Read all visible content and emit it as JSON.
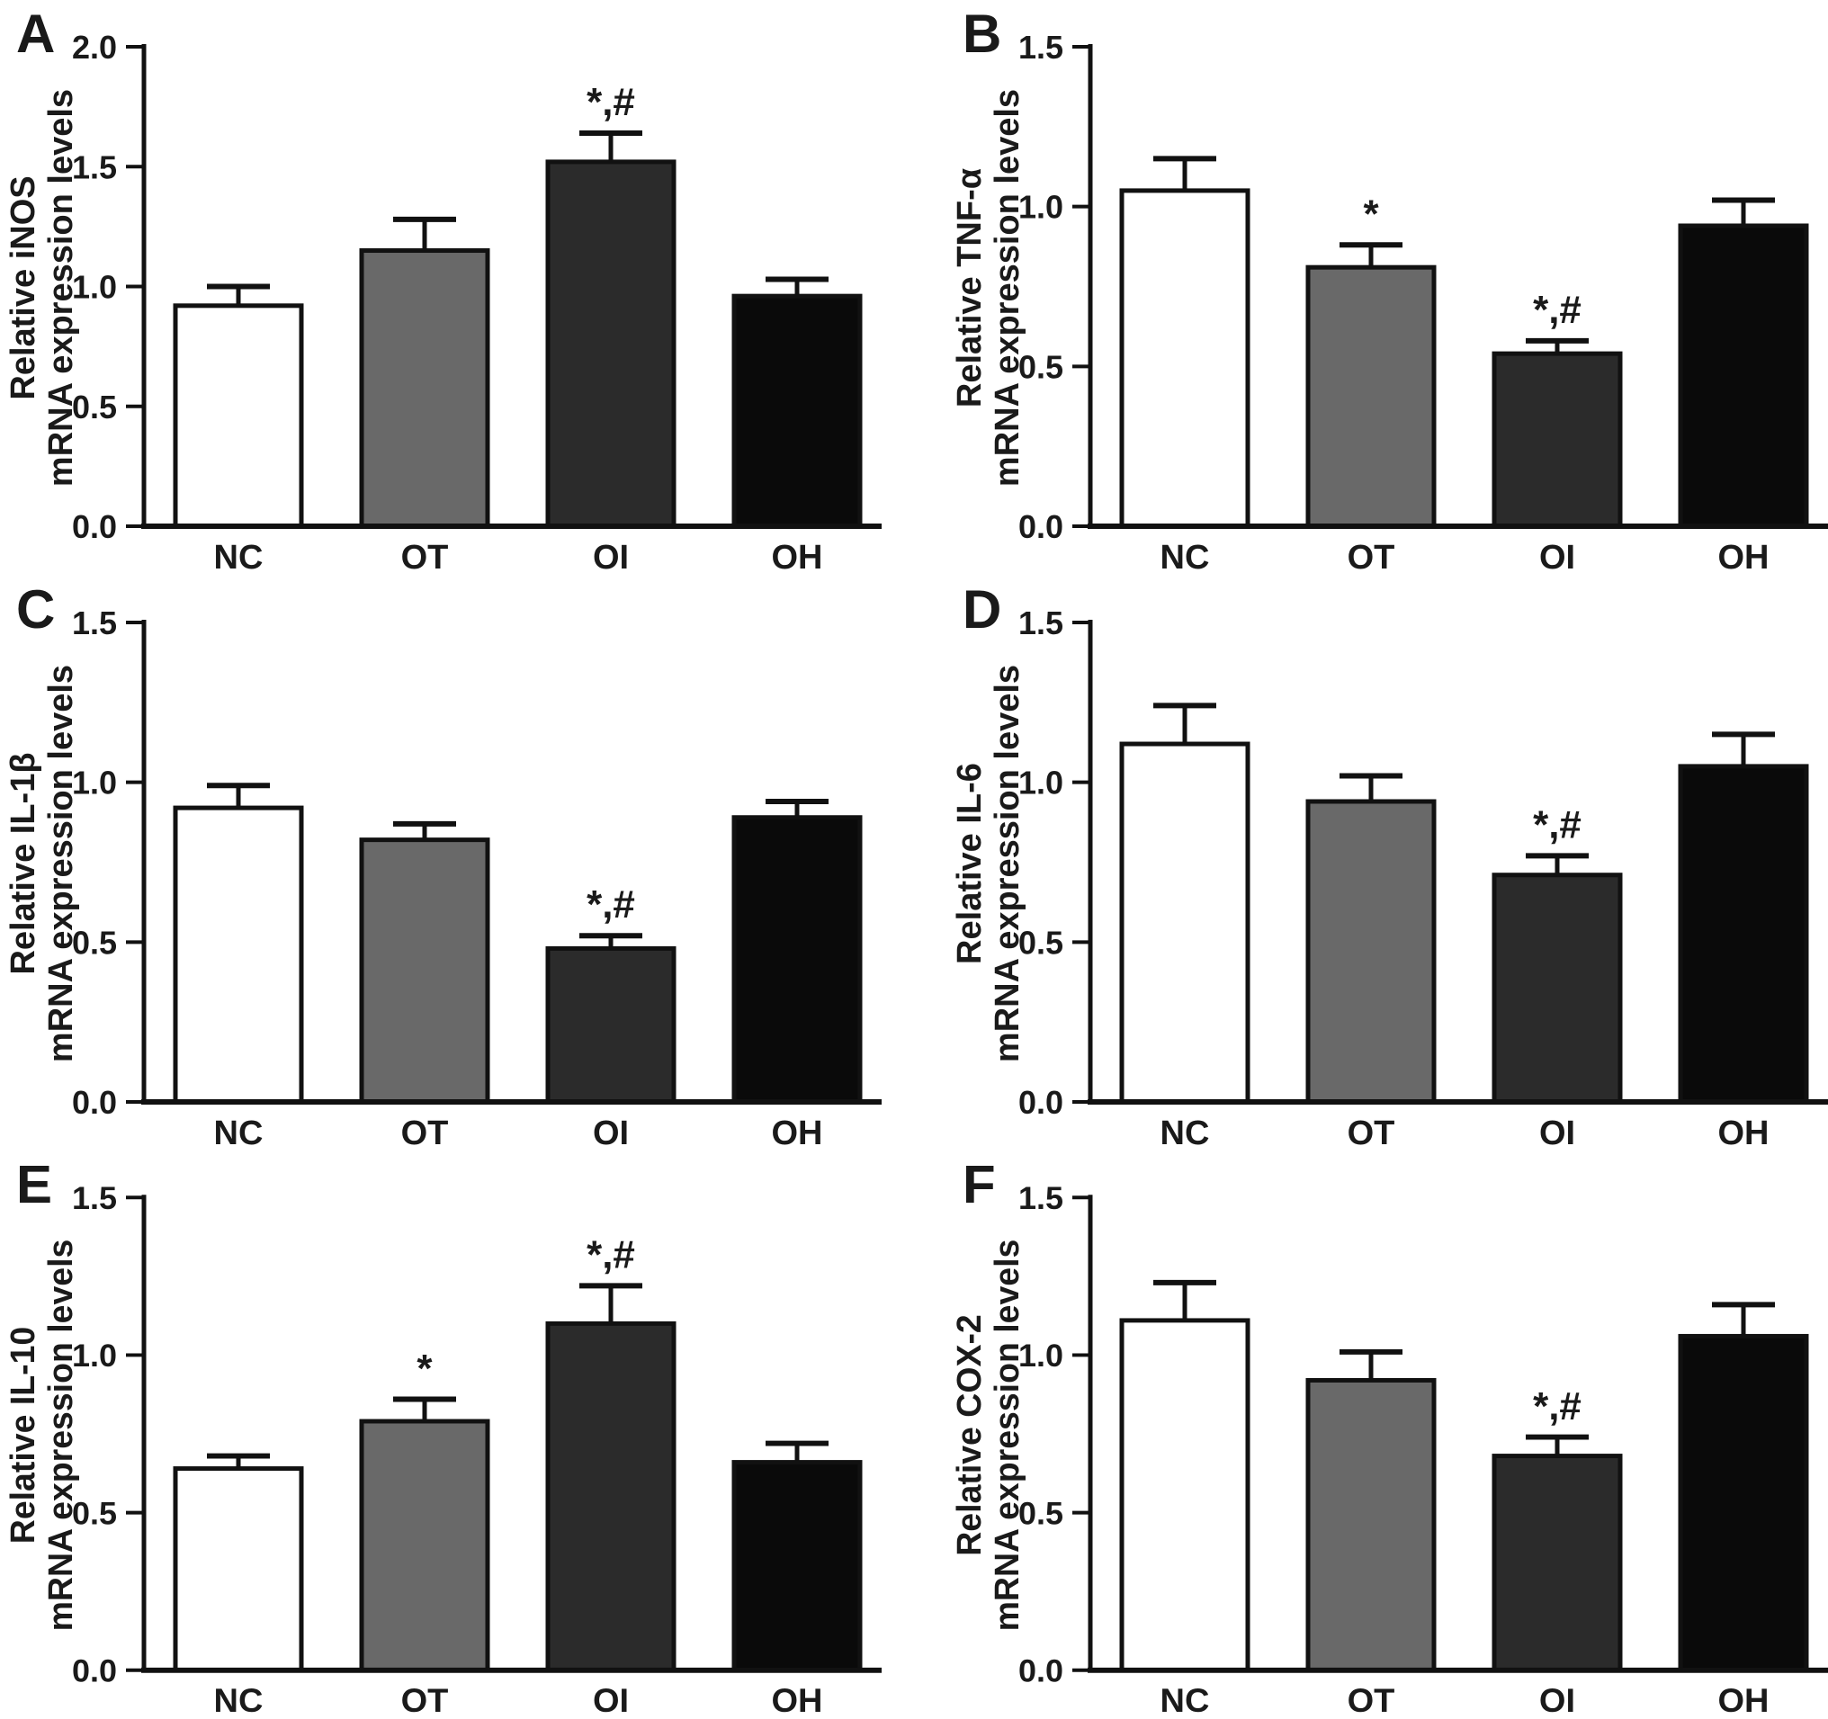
{
  "figure": {
    "background": "#ffffff",
    "text_color": "#1a1a1a",
    "axis_color": "#111111",
    "bar_stroke": "#111111",
    "categories": [
      "NC",
      "OT",
      "OI",
      "OH"
    ],
    "bar_colors": [
      "#ffffff",
      "#696969",
      "#2b2b2b",
      "#0a0a0a"
    ]
  },
  "chart_data": [
    {
      "type": "bar",
      "panel": "A",
      "ylabel_line1": "Relative iNOS",
      "ylabel_line2": "mRNA expression levels",
      "categories": [
        "NC",
        "OT",
        "OI",
        "OH"
      ],
      "values": [
        0.92,
        1.15,
        1.52,
        0.96
      ],
      "errors": [
        0.08,
        0.13,
        0.12,
        0.07
      ],
      "annotations": [
        "",
        "",
        "*,#",
        ""
      ],
      "yticks": [
        "0.0",
        "0.5",
        "1.0",
        "1.5",
        "2.0"
      ],
      "ylim": [
        0,
        2.0
      ],
      "grid": false,
      "legend": "none",
      "bar_fills": [
        "#ffffff",
        "#696969",
        "#2b2b2b",
        "#0a0a0a"
      ]
    },
    {
      "type": "bar",
      "panel": "B",
      "ylabel_line1": "Relative TNF-α",
      "ylabel_line2": "mRNA expression levels",
      "categories": [
        "NC",
        "OT",
        "OI",
        "OH"
      ],
      "values": [
        1.05,
        0.81,
        0.54,
        0.94
      ],
      "errors": [
        0.1,
        0.07,
        0.04,
        0.08
      ],
      "annotations": [
        "",
        "*",
        "*,#",
        ""
      ],
      "yticks": [
        "0.0",
        "0.5",
        "1.0",
        "1.5"
      ],
      "ylim": [
        0,
        1.5
      ],
      "grid": false,
      "legend": "none",
      "bar_fills": [
        "#ffffff",
        "#696969",
        "#2b2b2b",
        "#0a0a0a"
      ]
    },
    {
      "type": "bar",
      "panel": "C",
      "ylabel_line1": "Relative IL-1β",
      "ylabel_line2": "mRNA expression levels",
      "categories": [
        "NC",
        "OT",
        "OI",
        "OH"
      ],
      "values": [
        0.92,
        0.82,
        0.48,
        0.89
      ],
      "errors": [
        0.07,
        0.05,
        0.04,
        0.05
      ],
      "annotations": [
        "",
        "",
        "*,#",
        ""
      ],
      "yticks": [
        "0.0",
        "0.5",
        "1.0",
        "1.5"
      ],
      "ylim": [
        0,
        1.5
      ],
      "grid": false,
      "legend": "none",
      "bar_fills": [
        "#ffffff",
        "#696969",
        "#2b2b2b",
        "#0a0a0a"
      ]
    },
    {
      "type": "bar",
      "panel": "D",
      "ylabel_line1": "Relative IL-6",
      "ylabel_line2": "mRNA expression levels",
      "categories": [
        "NC",
        "OT",
        "OI",
        "OH"
      ],
      "values": [
        1.12,
        0.94,
        0.71,
        1.05
      ],
      "errors": [
        0.12,
        0.08,
        0.06,
        0.1
      ],
      "annotations": [
        "",
        "",
        "*,#",
        ""
      ],
      "yticks": [
        "0.0",
        "0.5",
        "1.0",
        "1.5"
      ],
      "ylim": [
        0,
        1.5
      ],
      "grid": false,
      "legend": "none",
      "bar_fills": [
        "#ffffff",
        "#696969",
        "#2b2b2b",
        "#0a0a0a"
      ]
    },
    {
      "type": "bar",
      "panel": "E",
      "ylabel_line1": "Relative IL-10",
      "ylabel_line2": "mRNA expression levels",
      "categories": [
        "NC",
        "OT",
        "OI",
        "OH"
      ],
      "values": [
        0.64,
        0.79,
        1.1,
        0.66
      ],
      "errors": [
        0.04,
        0.07,
        0.12,
        0.06
      ],
      "annotations": [
        "",
        "*",
        "*,#",
        ""
      ],
      "yticks": [
        "0.0",
        "0.5",
        "1.0",
        "1.5"
      ],
      "ylim": [
        0,
        1.5
      ],
      "grid": false,
      "legend": "none",
      "bar_fills": [
        "#ffffff",
        "#696969",
        "#2b2b2b",
        "#0a0a0a"
      ]
    },
    {
      "type": "bar",
      "panel": "F",
      "ylabel_line1": "Relative COX-2",
      "ylabel_line2": "mRNA expression levels",
      "categories": [
        "NC",
        "OT",
        "OI",
        "OH"
      ],
      "values": [
        1.11,
        0.92,
        0.68,
        1.06
      ],
      "errors": [
        0.12,
        0.09,
        0.06,
        0.1
      ],
      "annotations": [
        "",
        "",
        "*,#",
        ""
      ],
      "yticks": [
        "0.0",
        "0.5",
        "1.0",
        "1.5"
      ],
      "ylim": [
        0,
        1.5
      ],
      "grid": false,
      "legend": "none",
      "bar_fills": [
        "#ffffff",
        "#696969",
        "#2b2b2b",
        "#0a0a0a"
      ]
    }
  ]
}
